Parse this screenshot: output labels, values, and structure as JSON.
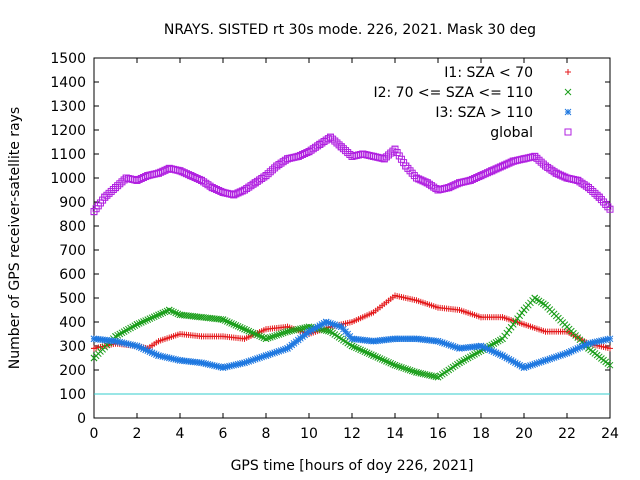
{
  "chart_data": {
    "type": "scatter",
    "title": "NRAYS. SISTED rt 30s mode. 226, 2021. Mask 30 deg",
    "xlabel": "GPS time [hours of doy 226, 2021]",
    "ylabel": "Number of GPS receiver-satellite rays",
    "xlim": [
      0,
      24
    ],
    "ylim": [
      0,
      1500
    ],
    "xticks": [
      0,
      2,
      4,
      6,
      8,
      10,
      12,
      14,
      16,
      18,
      20,
      22,
      24
    ],
    "yticks": [
      0,
      100,
      200,
      300,
      400,
      500,
      600,
      700,
      800,
      900,
      1000,
      1100,
      1200,
      1300,
      1400,
      1500
    ],
    "legend_position": "top-right",
    "threshold_line": {
      "value": 100,
      "color": "#33cccc"
    },
    "series": [
      {
        "name": "I1: SZA < 70",
        "marker": "+",
        "color": "#e41a1c",
        "x": [
          0,
          1,
          2,
          2.5,
          3,
          4,
          5,
          6,
          7,
          8,
          9,
          10,
          11,
          12,
          13,
          14,
          15,
          16,
          17,
          18,
          19,
          20,
          21,
          22,
          23,
          24
        ],
        "values": [
          290,
          310,
          300,
          290,
          320,
          350,
          340,
          340,
          330,
          370,
          380,
          350,
          380,
          400,
          440,
          510,
          490,
          460,
          450,
          420,
          420,
          390,
          360,
          360,
          310,
          290
        ]
      },
      {
        "name": "I2: 70 <= SZA <= 110",
        "marker": "x",
        "color": "#1a9e1a",
        "x": [
          0,
          1,
          2,
          3,
          3.5,
          4,
          5,
          6,
          7,
          8,
          9,
          10,
          11,
          12,
          13,
          14,
          15,
          16,
          17,
          18,
          19,
          20,
          20.5,
          21,
          22,
          23,
          24
        ],
        "values": [
          250,
          340,
          390,
          430,
          450,
          430,
          420,
          410,
          370,
          330,
          360,
          380,
          360,
          300,
          260,
          220,
          190,
          170,
          230,
          280,
          330,
          450,
          500,
          470,
          380,
          290,
          220
        ]
      },
      {
        "name": "I3: SZA > 110",
        "marker": "*",
        "color": "#1f78e0",
        "x": [
          0,
          1,
          2,
          3,
          4,
          5,
          6,
          7,
          8,
          9,
          10,
          10.8,
          11.5,
          12,
          13,
          14,
          15,
          16,
          17,
          18,
          19,
          20,
          21,
          22,
          23,
          24
        ],
        "values": [
          330,
          320,
          300,
          260,
          240,
          230,
          210,
          230,
          260,
          290,
          360,
          400,
          380,
          330,
          320,
          330,
          330,
          320,
          290,
          300,
          260,
          210,
          240,
          270,
          310,
          330
        ]
      },
      {
        "name": "global",
        "marker": "square",
        "color": "#b020e0",
        "x": [
          0,
          0.5,
          1,
          1.5,
          2,
          2.5,
          3,
          3.5,
          4,
          4.5,
          5,
          5.5,
          6,
          6.5,
          7,
          7.5,
          8,
          8.5,
          9,
          9.5,
          10,
          10.5,
          11,
          11.5,
          12,
          12.5,
          13,
          13.5,
          14,
          14.5,
          15,
          15.5,
          16,
          16.5,
          17,
          17.5,
          18,
          18.5,
          19,
          19.5,
          20,
          20.5,
          21,
          21.5,
          22,
          22.5,
          23,
          23.5,
          24
        ],
        "values": [
          860,
          920,
          960,
          1000,
          990,
          1010,
          1020,
          1040,
          1030,
          1010,
          990,
          960,
          940,
          930,
          950,
          980,
          1010,
          1050,
          1080,
          1090,
          1110,
          1140,
          1170,
          1130,
          1090,
          1100,
          1090,
          1080,
          1120,
          1050,
          1000,
          980,
          950,
          960,
          980,
          990,
          1010,
          1030,
          1050,
          1070,
          1080,
          1090,
          1050,
          1020,
          1000,
          990,
          960,
          920,
          870
        ]
      }
    ]
  }
}
